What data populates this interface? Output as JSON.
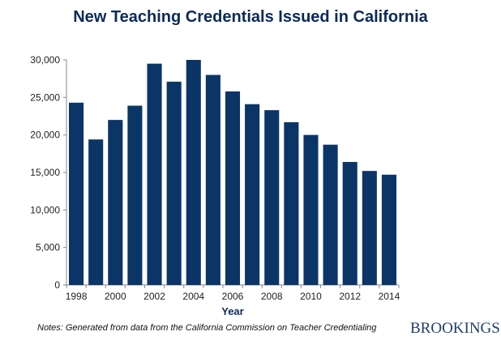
{
  "chart_data": {
    "type": "bar",
    "title": "New Teaching Credentials Issued in California",
    "xlabel": "Year",
    "ylabel": "",
    "categories": [
      "1998",
      "1999",
      "2000",
      "2001",
      "2002",
      "2003",
      "2004",
      "2005",
      "2006",
      "2007",
      "2008",
      "2009",
      "2010",
      "2011",
      "2012",
      "2013",
      "2014"
    ],
    "x_tick_labels": [
      "1998",
      "2000",
      "2002",
      "2004",
      "2006",
      "2008",
      "2010",
      "2012",
      "2014"
    ],
    "values": [
      24300,
      19400,
      22000,
      23900,
      29500,
      27100,
      30000,
      28000,
      25800,
      24100,
      23300,
      21700,
      20000,
      18700,
      16400,
      15200,
      14700
    ],
    "ylim": [
      0,
      30000
    ],
    "y_ticks": [
      "0",
      "5,000",
      "10,000",
      "15,000",
      "20,000",
      "25,000",
      "30,000"
    ],
    "grid": false,
    "bar_color": "#0b3566"
  },
  "notes": "Notes: Generated from data from the California Commission on Teacher Credentialing",
  "logo_text": "BROOKINGS",
  "colors": {
    "title": "#0b2a5a",
    "bar": "#0b3566",
    "logo": "#1f3f6b"
  }
}
